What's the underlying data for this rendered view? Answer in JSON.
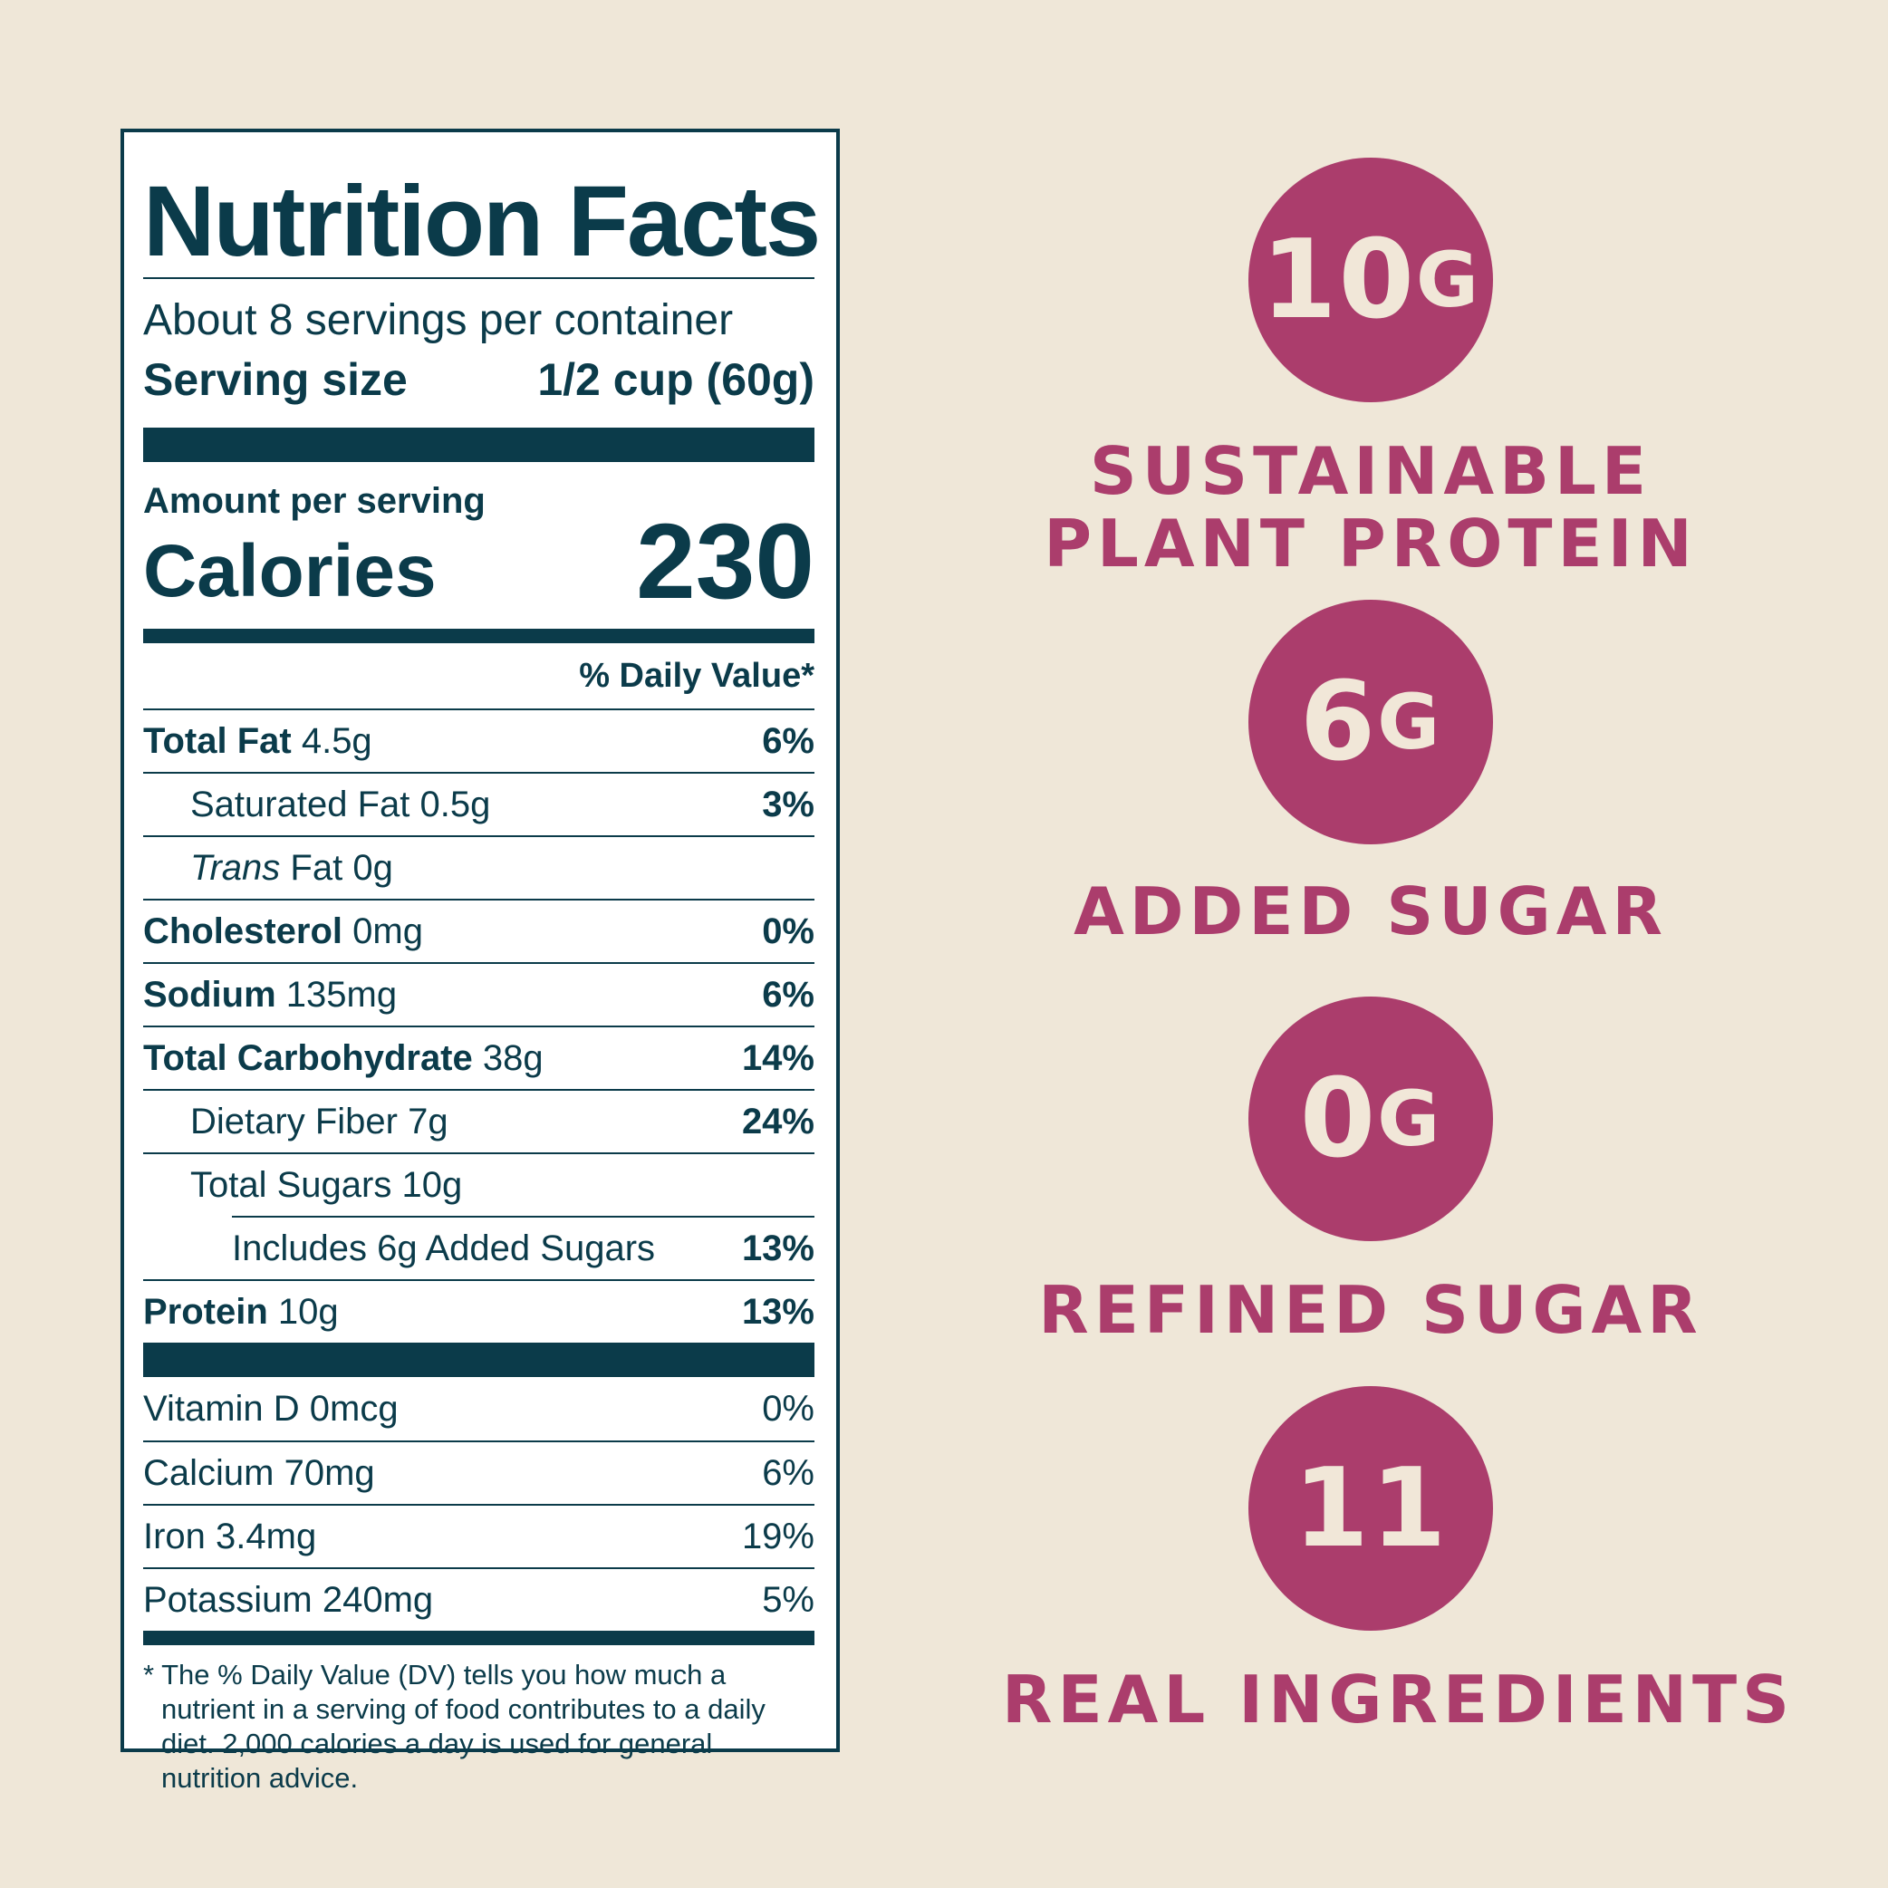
{
  "nutrition": {
    "title": "Nutrition Facts",
    "servings_per_container": "About 8 servings per container",
    "serving_size_label": "Serving size",
    "serving_size_value": "1/2 cup (60g)",
    "amount_per_serving": "Amount per serving",
    "calories_label": "Calories",
    "calories_value": "230",
    "daily_value_header": "% Daily Value*",
    "rows": [
      {
        "name": "Total Fat",
        "amount": "4.5g",
        "dv": "6%"
      },
      {
        "name": "Saturated Fat",
        "amount": "0.5g",
        "dv": "3%"
      },
      {
        "name_italic": "Trans",
        "name": "Fat",
        "amount": "0g",
        "dv": ""
      },
      {
        "name": "Cholesterol",
        "amount": "0mg",
        "dv": "0%"
      },
      {
        "name": "Sodium",
        "amount": "135mg",
        "dv": "6%"
      },
      {
        "name": "Total Carbohydrate",
        "amount": "38g",
        "dv": "14%"
      },
      {
        "name": "Dietary Fiber",
        "amount": "7g",
        "dv": "24%"
      },
      {
        "name": "Total Sugars",
        "amount": "10g",
        "dv": ""
      },
      {
        "name": "Includes 6g Added Sugars",
        "amount": "",
        "dv": "13%"
      },
      {
        "name": "Protein",
        "amount": "10g",
        "dv": "13%"
      }
    ],
    "vitamins": [
      {
        "label": "Vitamin D 0mcg",
        "dv": "0%"
      },
      {
        "label": "Calcium 70mg",
        "dv": "6%"
      },
      {
        "label": "Iron 3.4mg",
        "dv": "19%"
      },
      {
        "label": "Potassium 240mg",
        "dv": "5%"
      }
    ],
    "footnote": "* The % Daily Value (DV) tells you how much a nutrient in a serving of food contributes to a daily diet. 2,000 calories a day is used for general nutrition advice."
  },
  "badges": [
    {
      "number": "10",
      "unit": "G",
      "caption_line1": "SUSTAINABLE",
      "caption_line2": "PLANT PROTEIN"
    },
    {
      "number": "6",
      "unit": "G",
      "caption_line1": "ADDED SUGAR"
    },
    {
      "number": "0",
      "unit": "G",
      "caption_line1": "REFINED SUGAR"
    },
    {
      "number": "11",
      "unit": "",
      "caption_line1": "REAL INGREDIENTS"
    }
  ],
  "colors": {
    "label_ink": "#0b3b4a",
    "badge_pink": "#ab3d6c",
    "background": "#efe7d8"
  }
}
